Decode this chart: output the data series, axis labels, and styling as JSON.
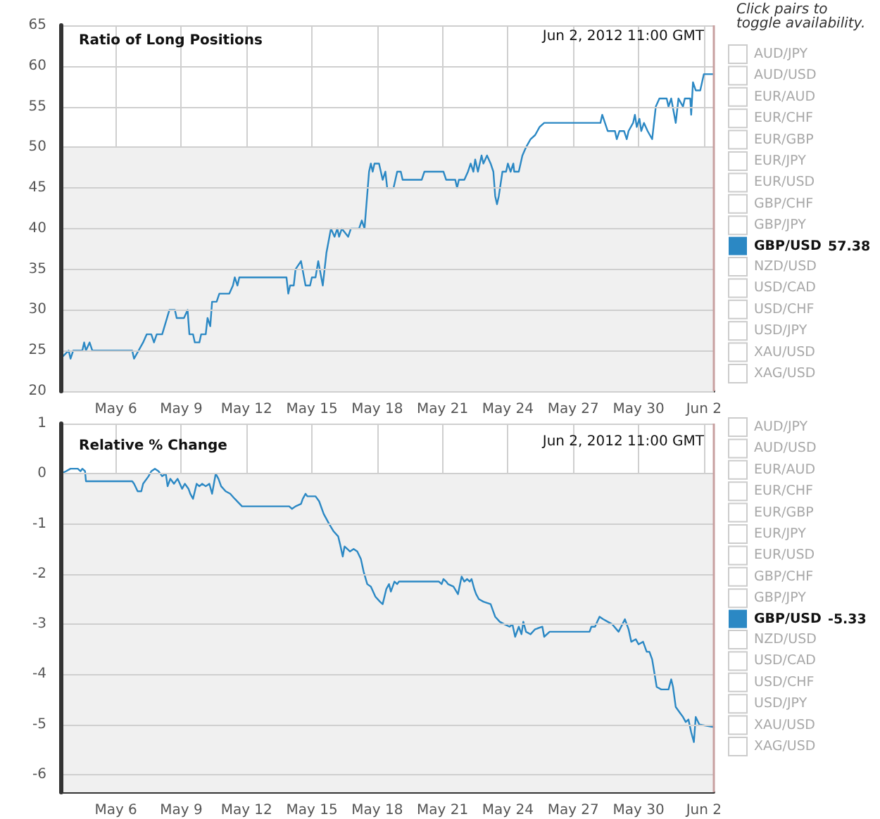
{
  "chart_data": [
    {
      "type": "line",
      "title": "Ratio of Long Positions",
      "legend_title": "Click pairs to toggle availability.",
      "annotations": [
        "Jun 2, 2012 11:00 GMT",
        "57.38"
      ],
      "xlim": [
        "2012-05-03T11:00",
        "2012-06-02T11:00"
      ],
      "xticks": [
        {
          "value": "2012-05-06",
          "label": "May 6"
        },
        {
          "value": "2012-05-09",
          "label": "May 9"
        },
        {
          "value": "2012-05-12",
          "label": "May 12"
        },
        {
          "value": "2012-05-15",
          "label": "May 15"
        },
        {
          "value": "2012-05-18",
          "label": "May 18"
        },
        {
          "value": "2012-05-21",
          "label": "May 21"
        },
        {
          "value": "2012-05-24",
          "label": "May 24"
        },
        {
          "value": "2012-05-27",
          "label": "May 27"
        },
        {
          "value": "2012-05-30",
          "label": "May 30"
        },
        {
          "value": "2012-06-02",
          "label": "Jun 2"
        }
      ],
      "ylim": [
        20,
        65
      ],
      "yticks": [
        20,
        25,
        30,
        35,
        40,
        45,
        50,
        55,
        60,
        65
      ],
      "grid": true,
      "legend": "right",
      "marker": "none",
      "line_style": "solid",
      "bands": [
        {
          "axis": "y",
          "from": 20,
          "to": 50,
          "color": "#f0f0f0"
        }
      ],
      "ref_lines": [
        {
          "axis": "x",
          "value": "2012-06-02T11:00",
          "color": "#c8a0a0"
        }
      ],
      "series": [
        {
          "name": "AUD/JPY"
        },
        {
          "name": "AUD/USD"
        },
        {
          "name": "EUR/AUD"
        },
        {
          "name": "EUR/CHF"
        },
        {
          "name": "EUR/GBP"
        },
        {
          "name": "EUR/JPY"
        },
        {
          "name": "EUR/USD"
        },
        {
          "name": "GBP/CHF"
        },
        {
          "name": "GBP/JPY"
        },
        {
          "name": "GBP/USD",
          "color": "#2b88c4",
          "x": [
            "2012-05-03T11:00",
            "2012-05-03T20:00",
            "2012-05-03T22:00",
            "2012-05-04T01:00",
            "2012-05-04T11:00",
            "2012-05-04T13:00",
            "2012-05-04T15:00",
            "2012-05-04T19:00",
            "2012-05-04T22:00",
            "2012-05-06T18:00",
            "2012-05-06T20:00",
            "2012-05-07T01:00",
            "2012-05-07T06:00",
            "2012-05-07T10:00",
            "2012-05-07T15:00",
            "2012-05-07T18:00",
            "2012-05-07T21:00",
            "2012-05-08T03:00",
            "2012-05-08T11:00",
            "2012-05-08T17:00",
            "2012-05-08T19:00",
            "2012-05-09T03:00",
            "2012-05-09T07:00",
            "2012-05-09T09:00",
            "2012-05-09T13:00",
            "2012-05-09T15:00",
            "2012-05-09T20:00",
            "2012-05-09T22:00",
            "2012-05-10T03:00",
            "2012-05-10T05:00",
            "2012-05-10T08:00",
            "2012-05-10T10:00",
            "2012-05-10T15:00",
            "2012-05-10T18:00",
            "2012-05-11T05:00",
            "2012-05-11T09:00",
            "2012-05-11T11:00",
            "2012-05-11T14:00",
            "2012-05-11T16:00",
            "2012-05-13T20:00",
            "2012-05-13T22:00",
            "2012-05-14T00:00",
            "2012-05-14T04:00",
            "2012-05-14T06:00",
            "2012-05-14T12:00",
            "2012-05-14T17:00",
            "2012-05-14T22:00",
            "2012-05-15T00:00",
            "2012-05-15T04:00",
            "2012-05-15T07:00",
            "2012-05-15T12:00",
            "2012-05-15T16:00",
            "2012-05-15T21:00",
            "2012-05-16T01:00",
            "2012-05-16T04:00",
            "2012-05-16T06:00",
            "2012-05-16T09:00",
            "2012-05-16T16:00",
            "2012-05-16T19:00",
            "2012-05-17T04:00",
            "2012-05-17T07:00",
            "2012-05-17T10:00",
            "2012-05-17T15:00",
            "2012-05-17T17:00",
            "2012-05-17T19:00",
            "2012-05-17T21:00",
            "2012-05-18T02:00",
            "2012-05-18T06:00",
            "2012-05-18T09:00",
            "2012-05-18T11:00",
            "2012-05-18T18:00",
            "2012-05-18T22:00",
            "2012-05-19T02:00",
            "2012-05-19T04:00",
            "2012-05-20T01:00",
            "2012-05-20T04:00",
            "2012-05-21T01:00",
            "2012-05-21T04:00",
            "2012-05-21T14:00",
            "2012-05-21T16:00",
            "2012-05-21T18:00",
            "2012-05-22T00:00",
            "2012-05-22T04:00",
            "2012-05-22T07:00",
            "2012-05-22T10:00",
            "2012-05-22T12:00",
            "2012-05-22T15:00",
            "2012-05-22T19:00",
            "2012-05-22T21:00",
            "2012-05-23T01:00",
            "2012-05-23T05:00",
            "2012-05-23T08:00",
            "2012-05-23T10:00",
            "2012-05-23T12:00",
            "2012-05-23T14:00",
            "2012-05-23T18:00",
            "2012-05-23T22:00",
            "2012-05-24T00:00",
            "2012-05-24T03:00",
            "2012-05-24T06:00",
            "2012-05-24T07:00",
            "2012-05-24T12:00",
            "2012-05-24T16:00",
            "2012-05-24T20:00",
            "2012-05-25T01:00",
            "2012-05-25T06:00",
            "2012-05-25T11:00",
            "2012-05-25T16:00",
            "2012-05-28T06:00",
            "2012-05-28T08:00",
            "2012-05-28T11:00",
            "2012-05-28T14:00",
            "2012-05-28T22:00",
            "2012-05-29T00:00",
            "2012-05-29T03:00",
            "2012-05-29T08:00",
            "2012-05-29T11:00",
            "2012-05-29T13:00",
            "2012-05-29T18:00",
            "2012-05-29T20:00",
            "2012-05-29T22:00",
            "2012-05-30T01:00",
            "2012-05-30T03:00",
            "2012-05-30T06:00",
            "2012-05-30T10:00",
            "2012-05-30T15:00",
            "2012-05-30T19:00",
            "2012-05-30T23:00",
            "2012-05-31T07:00",
            "2012-05-31T09:00",
            "2012-05-31T12:00",
            "2012-05-31T17:00",
            "2012-05-31T20:00",
            "2012-06-01T01:00",
            "2012-06-01T03:00",
            "2012-06-01T09:00",
            "2012-06-01T10:00",
            "2012-06-01T12:00",
            "2012-06-01T15:00",
            "2012-06-01T20:00",
            "2012-06-02T00:00",
            "2012-06-02T11:00"
          ],
          "values": [
            24,
            25,
            24,
            25,
            25,
            26,
            25,
            26,
            25,
            25,
            24,
            25,
            26,
            27,
            27,
            26,
            27,
            27,
            30,
            30,
            29,
            29,
            30,
            27,
            27,
            26,
            26,
            27,
            27,
            29,
            28,
            31,
            31,
            32,
            32,
            33,
            34,
            33,
            34,
            34,
            32,
            33,
            33,
            35,
            36,
            33,
            33,
            34,
            34,
            36,
            33,
            37,
            40,
            39,
            40,
            39,
            40,
            39,
            40,
            40,
            41,
            40,
            47,
            48,
            47,
            48,
            48,
            46,
            47,
            45,
            45,
            47,
            47,
            46,
            46,
            47,
            47,
            46,
            46,
            45,
            46,
            46,
            47,
            48,
            47,
            48.5,
            47,
            49,
            48,
            49,
            48,
            47,
            44,
            43,
            44,
            47,
            47,
            48,
            47,
            48,
            47,
            47,
            49,
            50,
            51,
            51.5,
            52.5,
            53,
            53,
            54,
            53,
            52,
            52,
            51,
            52,
            52,
            51,
            52,
            53,
            54,
            52.5,
            53.5,
            52,
            53,
            52,
            51,
            55,
            56,
            56,
            55,
            56,
            53,
            56,
            55,
            56,
            56,
            54,
            58,
            57,
            57,
            59,
            59
          ]
        },
        {
          "name": "NZD/USD"
        },
        {
          "name": "USD/CAD"
        },
        {
          "name": "USD/CHF"
        },
        {
          "name": "USD/JPY"
        },
        {
          "name": "XAU/USD"
        },
        {
          "name": "XAG/USD"
        }
      ]
    },
    {
      "type": "line",
      "title": "Relative % Change",
      "annotations": [
        "Jun 2, 2012 11:00 GMT",
        "-5.33"
      ],
      "xlim": [
        "2012-05-03T11:00",
        "2012-06-02T11:00"
      ],
      "xticks": [
        {
          "value": "2012-05-06",
          "label": "May 6"
        },
        {
          "value": "2012-05-09",
          "label": "May 9"
        },
        {
          "value": "2012-05-12",
          "label": "May 12"
        },
        {
          "value": "2012-05-15",
          "label": "May 15"
        },
        {
          "value": "2012-05-18",
          "label": "May 18"
        },
        {
          "value": "2012-05-21",
          "label": "May 21"
        },
        {
          "value": "2012-05-24",
          "label": "May 24"
        },
        {
          "value": "2012-05-27",
          "label": "May 27"
        },
        {
          "value": "2012-05-30",
          "label": "May 30"
        },
        {
          "value": "2012-06-02",
          "label": "Jun 2"
        }
      ],
      "ylim": [
        -6.35,
        1
      ],
      "yticks": [
        -6,
        -5,
        -4,
        -3,
        -2,
        -1,
        0,
        1
      ],
      "grid": true,
      "legend": "right",
      "marker": "none",
      "line_style": "solid",
      "bands": [
        {
          "axis": "y",
          "from": -6.35,
          "to": 0,
          "color": "#f0f0f0"
        }
      ],
      "ref_lines": [
        {
          "axis": "x",
          "value": "2012-06-02T11:00",
          "color": "#c8a0a0"
        }
      ],
      "series": [
        {
          "name": "AUD/JPY"
        },
        {
          "name": "AUD/USD"
        },
        {
          "name": "EUR/AUD"
        },
        {
          "name": "EUR/CHF"
        },
        {
          "name": "EUR/GBP"
        },
        {
          "name": "EUR/JPY"
        },
        {
          "name": "EUR/USD"
        },
        {
          "name": "GBP/CHF"
        },
        {
          "name": "GBP/JPY"
        },
        {
          "name": "GBP/USD",
          "color": "#2b88c4",
          "x": [
            "2012-05-03T11:00",
            "2012-05-03T17:00",
            "2012-05-03T22:00",
            "2012-05-04T06:00",
            "2012-05-04T09:00",
            "2012-05-04T11:00",
            "2012-05-04T14:00",
            "2012-05-04T15:00",
            "2012-05-06T18:00",
            "2012-05-06T20:00",
            "2012-05-07T00:00",
            "2012-05-07T04:00",
            "2012-05-07T06:00",
            "2012-05-07T12:00",
            "2012-05-07T15:00",
            "2012-05-07T19:00",
            "2012-05-07T23:00",
            "2012-05-08T03:00",
            "2012-05-08T07:00",
            "2012-05-08T09:00",
            "2012-05-08T12:00",
            "2012-05-08T16:00",
            "2012-05-08T20:00",
            "2012-05-09T01:00",
            "2012-05-09T04:00",
            "2012-05-09T08:00",
            "2012-05-09T10:00",
            "2012-05-09T13:00",
            "2012-05-09T17:00",
            "2012-05-09T20:00",
            "2012-05-09T23:00",
            "2012-05-10T03:00",
            "2012-05-10T07:00",
            "2012-05-10T10:00",
            "2012-05-10T14:00",
            "2012-05-10T17:00",
            "2012-05-10T20:00",
            "2012-05-11T01:00",
            "2012-05-11T06:00",
            "2012-05-11T11:00",
            "2012-05-11T19:00",
            "2012-05-12T00:00",
            "2012-05-13T23:00",
            "2012-05-14T02:00",
            "2012-05-14T06:00",
            "2012-05-14T12:00",
            "2012-05-14T14:00",
            "2012-05-14T17:00",
            "2012-05-14T19:00",
            "2012-05-15T00:00",
            "2012-05-15T04:00",
            "2012-05-15T08:00",
            "2012-05-15T13:00",
            "2012-05-15T19:00",
            "2012-05-16T00:00",
            "2012-05-16T05:00",
            "2012-05-16T07:00",
            "2012-05-16T10:00",
            "2012-05-16T12:00",
            "2012-05-16T15:00",
            "2012-05-16T18:00",
            "2012-05-16T22:00",
            "2012-05-17T02:00",
            "2012-05-17T06:00",
            "2012-05-17T09:00",
            "2012-05-17T13:00",
            "2012-05-17T17:00",
            "2012-05-17T22:00",
            "2012-05-18T03:00",
            "2012-05-18T06:00",
            "2012-05-18T10:00",
            "2012-05-18T13:00",
            "2012-05-18T15:00",
            "2012-05-18T19:00",
            "2012-05-18T22:00",
            "2012-05-19T00:00",
            "2012-05-20T20:00",
            "2012-05-20T23:00",
            "2012-05-21T01:00",
            "2012-05-21T04:00",
            "2012-05-21T06:00",
            "2012-05-21T12:00",
            "2012-05-21T17:00",
            "2012-05-21T21:00",
            "2012-05-22T00:00",
            "2012-05-22T03:00",
            "2012-05-22T06:00",
            "2012-05-22T08:00",
            "2012-05-22T11:00",
            "2012-05-22T13:00",
            "2012-05-22T16:00",
            "2012-05-22T21:00",
            "2012-05-23T05:00",
            "2012-05-23T08:00",
            "2012-05-23T10:00",
            "2012-05-23T15:00",
            "2012-05-23T20:00",
            "2012-05-24T02:00",
            "2012-05-24T05:00",
            "2012-05-24T08:00",
            "2012-05-24T12:00",
            "2012-05-24T15:00",
            "2012-05-24T17:00",
            "2012-05-24T20:00",
            "2012-05-25T01:00",
            "2012-05-25T06:00",
            "2012-05-25T14:00",
            "2012-05-25T16:00",
            "2012-05-25T22:00",
            "2012-05-27T18:00",
            "2012-05-27T20:00",
            "2012-05-28T00:00",
            "2012-05-28T05:00",
            "2012-05-28T09:00",
            "2012-05-28T14:00",
            "2012-05-28T19:00",
            "2012-05-29T02:00",
            "2012-05-29T09:00",
            "2012-05-29T13:00",
            "2012-05-29T16:00",
            "2012-05-29T21:00",
            "2012-05-30T00:00",
            "2012-05-30T05:00",
            "2012-05-30T09:00",
            "2012-05-30T12:00",
            "2012-05-30T15:00",
            "2012-05-30T20:00",
            "2012-05-31T01:00",
            "2012-05-31T07:00",
            "2012-05-31T09:00",
            "2012-05-31T12:00",
            "2012-05-31T14:00",
            "2012-05-31T17:00",
            "2012-05-31T21:00",
            "2012-06-01T01:00",
            "2012-06-01T04:00",
            "2012-06-01T07:00",
            "2012-06-01T10:00",
            "2012-06-01T13:00",
            "2012-06-01T15:00",
            "2012-06-01T19:00",
            "2012-06-02T11:00"
          ],
          "values": [
            0,
            0.05,
            0.1,
            0.1,
            0.05,
            0.1,
            0.05,
            -0.15,
            -0.15,
            -0.2,
            -0.35,
            -0.35,
            -0.2,
            -0.05,
            0.05,
            0.1,
            0.05,
            -0.05,
            0,
            -0.25,
            -0.1,
            -0.2,
            -0.1,
            -0.3,
            -0.2,
            -0.3,
            -0.4,
            -0.5,
            -0.2,
            -0.25,
            -0.2,
            -0.25,
            -0.2,
            -0.4,
            0,
            -0.1,
            -0.25,
            -0.35,
            -0.4,
            -0.5,
            -0.65,
            -0.65,
            -0.65,
            -0.7,
            -0.65,
            -0.6,
            -0.5,
            -0.4,
            -0.45,
            -0.45,
            -0.45,
            -0.55,
            -0.8,
            -1,
            -1.15,
            -1.25,
            -1.4,
            -1.65,
            -1.45,
            -1.5,
            -1.55,
            -1.5,
            -1.55,
            -1.7,
            -1.95,
            -2.2,
            -2.25,
            -2.45,
            -2.55,
            -2.6,
            -2.3,
            -2.2,
            -2.35,
            -2.15,
            -2.2,
            -2.15,
            -2.15,
            -2.2,
            -2.1,
            -2.15,
            -2.2,
            -2.25,
            -2.4,
            -2.05,
            -2.15,
            -2.1,
            -2.15,
            -2.1,
            -2.3,
            -2.4,
            -2.5,
            -2.55,
            -2.6,
            -2.75,
            -2.85,
            -2.95,
            -3,
            -3.05,
            -3,
            -3.25,
            -3.05,
            -3.2,
            -2.95,
            -3.15,
            -3.2,
            -3.1,
            -3.05,
            -3.25,
            -3.15,
            -3.15,
            -3.05,
            -3.05,
            -2.85,
            -2.9,
            -2.95,
            -3,
            -3.15,
            -2.9,
            -3.1,
            -3.35,
            -3.3,
            -3.4,
            -3.35,
            -3.55,
            -3.55,
            -3.7,
            -4.25,
            -4.3,
            -4.3,
            -4.3,
            -4.1,
            -4.25,
            -4.65,
            -4.75,
            -4.85,
            -4.95,
            -4.9,
            -5.15,
            -5.35,
            -4.85,
            -5,
            -5.05
          ]
        },
        {
          "name": "NZD/USD"
        },
        {
          "name": "USD/CAD"
        },
        {
          "name": "USD/CHF"
        },
        {
          "name": "USD/JPY"
        },
        {
          "name": "XAU/USD"
        },
        {
          "name": "XAG/USD"
        }
      ]
    }
  ]
}
